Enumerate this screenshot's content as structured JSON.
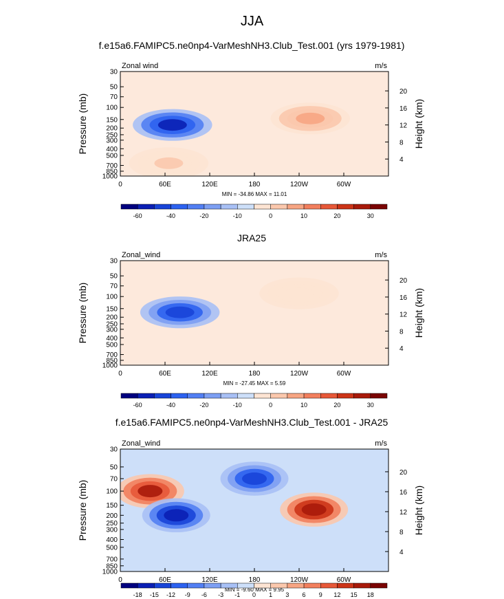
{
  "figure": {
    "title": "JJA"
  },
  "chart_data": [
    {
      "type": "heatmap",
      "title": "f.e15a6.FAMIPC5.ne0np4-VarMeshNH3.Club_Test.001 (yrs 1979-1981)",
      "left_label": "Zonal wind",
      "right_label": "m/s",
      "xlabel": "",
      "ylabel": "Pressure (mb)",
      "ylabel_right": "Height (km)",
      "x_ticks": [
        "0",
        "60E",
        "120E",
        "180",
        "120W",
        "60W"
      ],
      "y_ticks": [
        "30",
        "50",
        "70",
        "100",
        "150",
        "200",
        "250",
        "300",
        "400",
        "500",
        "700",
        "850",
        "1000"
      ],
      "height_ticks": [
        "20",
        "16",
        "12",
        "8",
        "4"
      ],
      "min_max_text": "MIN = -34.86   MAX =  11.01",
      "colorbar_labels": [
        "-60",
        "-40",
        "-20",
        "-10",
        "0",
        "10",
        "20",
        "30"
      ],
      "features": [
        {
          "lon": 70,
          "p": 180,
          "value": -30
        },
        {
          "lon": 255,
          "p": 145,
          "value": 10
        },
        {
          "lon": 65,
          "p": 650,
          "value": 5
        }
      ]
    },
    {
      "type": "heatmap",
      "title": "JRA25",
      "left_label": "Zonal_wind",
      "right_label": "m/s",
      "xlabel": "",
      "ylabel": "Pressure (mb)",
      "ylabel_right": "Height (km)",
      "x_ticks": [
        "0",
        "60E",
        "120E",
        "180",
        "120W",
        "60W"
      ],
      "y_ticks": [
        "30",
        "50",
        "70",
        "100",
        "150",
        "200",
        "250",
        "300",
        "400",
        "500",
        "700",
        "850",
        "1000"
      ],
      "height_ticks": [
        "20",
        "16",
        "12",
        "8",
        "4"
      ],
      "min_max_text": "MIN = -27.45   MAX =   5.59",
      "colorbar_labels": [
        "-60",
        "-40",
        "-20",
        "-10",
        "0",
        "10",
        "20",
        "30"
      ],
      "features": [
        {
          "lon": 80,
          "p": 170,
          "value": -25
        },
        {
          "lon": 240,
          "p": 90,
          "value": 4
        }
      ]
    },
    {
      "type": "heatmap",
      "title": "f.e15a6.FAMIPC5.ne0np4-VarMeshNH3.Club_Test.001 - JRA25",
      "left_label": "Zonal_wind",
      "right_label": "m/s",
      "xlabel": "",
      "ylabel": "Pressure (mb)",
      "ylabel_right": "Height (km)",
      "x_ticks": [
        "0",
        "60E",
        "120E",
        "180",
        "120W",
        "60W"
      ],
      "y_ticks": [
        "30",
        "50",
        "70",
        "100",
        "150",
        "200",
        "250",
        "300",
        "400",
        "500",
        "700",
        "850",
        "1000"
      ],
      "height_ticks": [
        "20",
        "16",
        "12",
        "8",
        "4"
      ],
      "min_max_text": "MIN =  -9.60   MAX =   9.95",
      "colorbar_labels": [
        "-18",
        "-15",
        "-12",
        "-9",
        "-6",
        "-3",
        "-1",
        "0",
        "1",
        "3",
        "6",
        "9",
        "12",
        "15",
        "18"
      ],
      "features": [
        {
          "lon": 260,
          "p": 170,
          "value": 9
        },
        {
          "lon": 40,
          "p": 100,
          "value": 8
        },
        {
          "lon": 75,
          "p": 200,
          "value": -9
        },
        {
          "lon": 180,
          "p": 70,
          "value": -8
        }
      ]
    }
  ],
  "colors": {
    "scale": [
      "#00007f",
      "#0a1fb4",
      "#1844d8",
      "#2c62f0",
      "#527ff3",
      "#7d9ff3",
      "#a8c0f5",
      "#cddff9",
      "#fde4d3",
      "#fbc8ad",
      "#f7a583",
      "#f27f5d",
      "#e75838",
      "#cc3417",
      "#a81a0a",
      "#7a0403"
    ],
    "neutral": "#fde9dc"
  }
}
